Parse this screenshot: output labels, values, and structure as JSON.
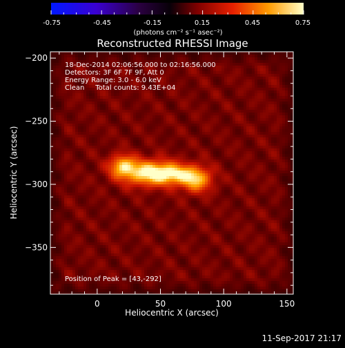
{
  "colorbar": {
    "ticks": [
      "-0.75",
      "-0.45",
      "-0.15",
      "0.15",
      "0.45",
      "0.75"
    ],
    "unit_label": "(photons cm⁻² s⁻¹ asec⁻²)"
  },
  "chart_data": {
    "type": "heatmap",
    "title": "Reconstructed RHESSI Image",
    "xlabel": "Heliocentric X (arcsec)",
    "ylabel": "Heliocentric Y (arcsec)",
    "xlim": [
      -37,
      155
    ],
    "ylim": [
      -387,
      -195
    ],
    "x_ticks": [
      0,
      50,
      100,
      150
    ],
    "y_ticks": [
      -200,
      -250,
      -300,
      -350
    ],
    "colorbar_range": [
      -0.75,
      0.75
    ],
    "colormap": "hot-with-blue-negative",
    "annotations": [
      "18-Dec-2014 02:06:56.000 to 02:16:56.000",
      "Detectors: 3F 6F 7F 9F, Att 0",
      "Energy Range: 3.0 - 6.0 keV",
      "Clean     Total counts: 9.43E+04"
    ],
    "peak_label": "Position of Peak = [43,-292]",
    "peak_position": [
      43,
      -292
    ],
    "sources": [
      {
        "x": 42,
        "y": -291,
        "sx": 16,
        "sy": 7,
        "amp": 0.75
      },
      {
        "x": 20,
        "y": -285,
        "sx": 7,
        "sy": 6,
        "amp": 0.5
      },
      {
        "x": 78,
        "y": -296,
        "sx": 9,
        "sy": 7,
        "amp": 0.6
      },
      {
        "x": 60,
        "y": -292,
        "sx": 10,
        "sy": 5,
        "amp": 0.35
      }
    ]
  },
  "footer": {
    "timestamp": "11-Sep-2017 21:17"
  }
}
